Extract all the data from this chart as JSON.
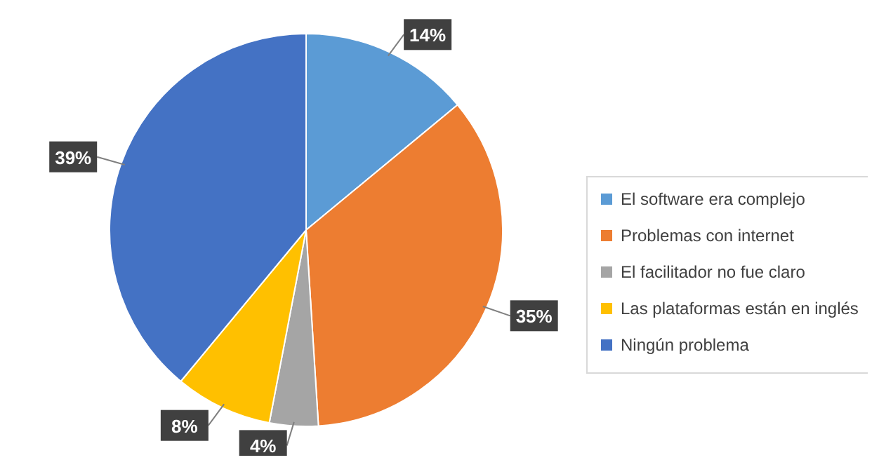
{
  "chart_data": {
    "type": "pie",
    "categories": [
      "El software era complejo",
      "Problemas con internet",
      "El facilitador no fue claro",
      "Las plataformas están en inglés",
      "Ningún problema"
    ],
    "values": [
      14,
      35,
      4,
      8,
      39
    ],
    "colors": [
      "#5b9bd5",
      "#ed7d31",
      "#a5a5a5",
      "#ffc000",
      "#4472c4"
    ],
    "value_labels": [
      "14%",
      "35%",
      "4%",
      "8%",
      "39%"
    ],
    "legend": "right"
  }
}
